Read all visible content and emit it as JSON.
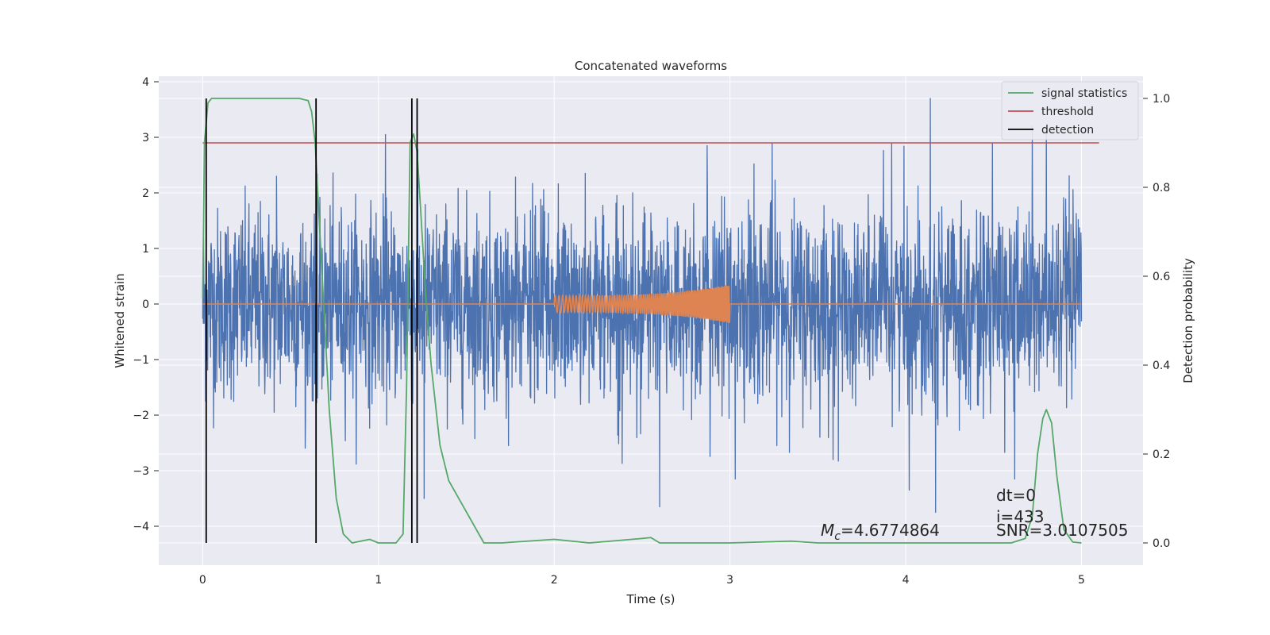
{
  "chart_data": {
    "type": "line",
    "title": "Concatenated waveforms",
    "xlabel": "Time (s)",
    "ylabel_left": "Whitened strain",
    "ylabel_right": "Detection probability",
    "xlim": [
      -0.25,
      5.35
    ],
    "ylim_left": [
      -4.7,
      4.1
    ],
    "ylim_right": [
      -0.05,
      1.05
    ],
    "x_ticks": [
      0,
      1,
      2,
      3,
      4,
      5
    ],
    "y_ticks_left": [
      -4,
      -3,
      -2,
      -1,
      0,
      1,
      2,
      3,
      4
    ],
    "y_ticks_right": [
      0.0,
      0.2,
      0.4,
      0.6,
      0.8,
      1.0
    ],
    "y_tick_labels_left": [
      "−4",
      "−3",
      "−2",
      "−1",
      "0",
      "1",
      "2",
      "3",
      "4"
    ],
    "y_tick_labels_right": [
      "0.0",
      "0.2",
      "0.4",
      "0.6",
      "0.8",
      "1.0"
    ],
    "grid": true,
    "legend_position": "top-right",
    "colors": {
      "background": "#eaeaf2",
      "grid": "#ffffff",
      "strain": "#4c72b0",
      "template": "#dd8452",
      "signal_statistics": "#55a868",
      "threshold": "#c44e52",
      "detection": "#000000"
    },
    "series": [
      {
        "name": "whitened strain",
        "axis": "left",
        "description_values": "dense noise time series spanning t = 0 to 5 s, amplitude mostly within about ±2.5 with spikes up to about 3.7",
        "x_range": [
          0,
          5
        ],
        "typical_amplitude": 2.3,
        "spikes": [
          {
            "x": 0.42,
            "y": 2.3
          },
          {
            "x": 1.04,
            "y": 3.05
          },
          {
            "x": 1.26,
            "y": -3.5
          },
          {
            "x": 2.6,
            "y": -3.65
          },
          {
            "x": 2.87,
            "y": 2.85
          },
          {
            "x": 3.03,
            "y": -3.15
          },
          {
            "x": 3.24,
            "y": 2.9
          },
          {
            "x": 3.92,
            "y": 2.9
          },
          {
            "x": 4.02,
            "y": -3.35
          },
          {
            "x": 4.14,
            "y": 3.7
          },
          {
            "x": 4.17,
            "y": -3.75
          },
          {
            "x": 4.62,
            "y": -3.15
          },
          {
            "x": 4.72,
            "y": 3.2
          },
          {
            "x": 4.8,
            "y": 3.2
          }
        ]
      },
      {
        "name": "template",
        "axis": "left",
        "description_values": "chirp waveform, zero outside 2.0–3.0 s, amplitude growing from about 0.15 at 2.0 s to about 0.35 at 3.0 s",
        "x_range": [
          2.0,
          3.0
        ],
        "amplitude_start": 0.15,
        "amplitude_end": 0.35
      },
      {
        "name": "signal statistics",
        "axis": "right",
        "x": [
          0,
          0.01,
          0.03,
          0.05,
          0.1,
          0.55,
          0.6,
          0.62,
          0.64,
          0.66,
          0.7,
          0.72,
          0.76,
          0.8,
          0.85,
          0.95,
          1.0,
          1.1,
          1.14,
          1.16,
          1.18,
          1.2,
          1.22,
          1.24,
          1.27,
          1.3,
          1.35,
          1.4,
          1.5,
          1.6,
          1.7,
          2.0,
          2.2,
          2.5,
          2.55,
          2.6,
          3.0,
          3.35,
          3.5,
          4.6,
          4.68,
          4.72,
          4.75,
          4.78,
          4.8,
          4.83,
          4.86,
          4.9,
          4.95,
          5.0
        ],
        "y": [
          0.55,
          0.9,
          0.99,
          1.0,
          1.0,
          1.0,
          0.995,
          0.97,
          0.9,
          0.75,
          0.45,
          0.3,
          0.1,
          0.02,
          0.0,
          0.008,
          0.0,
          0.0,
          0.02,
          0.35,
          0.9,
          0.92,
          0.88,
          0.75,
          0.55,
          0.4,
          0.22,
          0.14,
          0.07,
          0.0,
          0.0,
          0.008,
          0.0,
          0.01,
          0.012,
          0.0,
          0.0,
          0.004,
          0.0,
          0.0,
          0.01,
          0.06,
          0.2,
          0.28,
          0.3,
          0.27,
          0.15,
          0.03,
          0.002,
          0.0
        ]
      },
      {
        "name": "threshold",
        "axis": "right",
        "x": [
          0,
          5.1
        ],
        "y": [
          0.9,
          0.9
        ]
      },
      {
        "name": "detection",
        "axis": "right",
        "x": [
          0.02,
          0.645,
          1.19,
          1.22
        ],
        "y_range": [
          0.0,
          1.0
        ]
      }
    ],
    "annotations": {
      "mc_label": "M",
      "mc_subscript": "c",
      "mc_value": "=4.6774864",
      "dt": "dt=0",
      "i": "i=433",
      "snr": "SNR=3.0107505"
    }
  }
}
